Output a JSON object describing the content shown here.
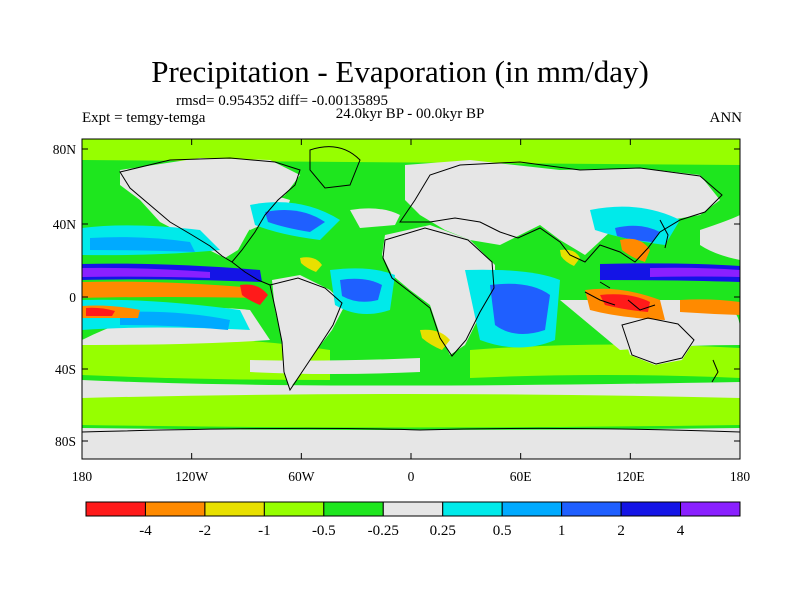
{
  "title": "Precipitation - Evaporation (in mm/day)",
  "stats": "rmsd= 0.954352 diff= -0.00135895",
  "experiment": "Expt = temgy-temga",
  "period": "24.0kyr BP - 00.0kyr BP",
  "season": "ANN",
  "y_ticks": [
    "80N",
    "40N",
    "0",
    "40S",
    "80S"
  ],
  "x_ticks": [
    "180",
    "120W",
    "60W",
    "0",
    "60E",
    "120E",
    "180"
  ],
  "colorbar": {
    "colors": [
      "#ff1a1a",
      "#ff8a00",
      "#e8e000",
      "#96ff00",
      "#1ee61e",
      "#e6e6e6",
      "#00eaea",
      "#00aaff",
      "#1f5fff",
      "#1414e6",
      "#8a20ff"
    ],
    "labels": [
      "-4",
      "-2",
      "-1",
      "-0.5",
      "-0.25",
      "0.25",
      "0.5",
      "1",
      "2",
      "4"
    ]
  },
  "colors": {
    "ocean_default": "#1ee61e",
    "land": "#e6e6e6",
    "coast": "#000000"
  }
}
